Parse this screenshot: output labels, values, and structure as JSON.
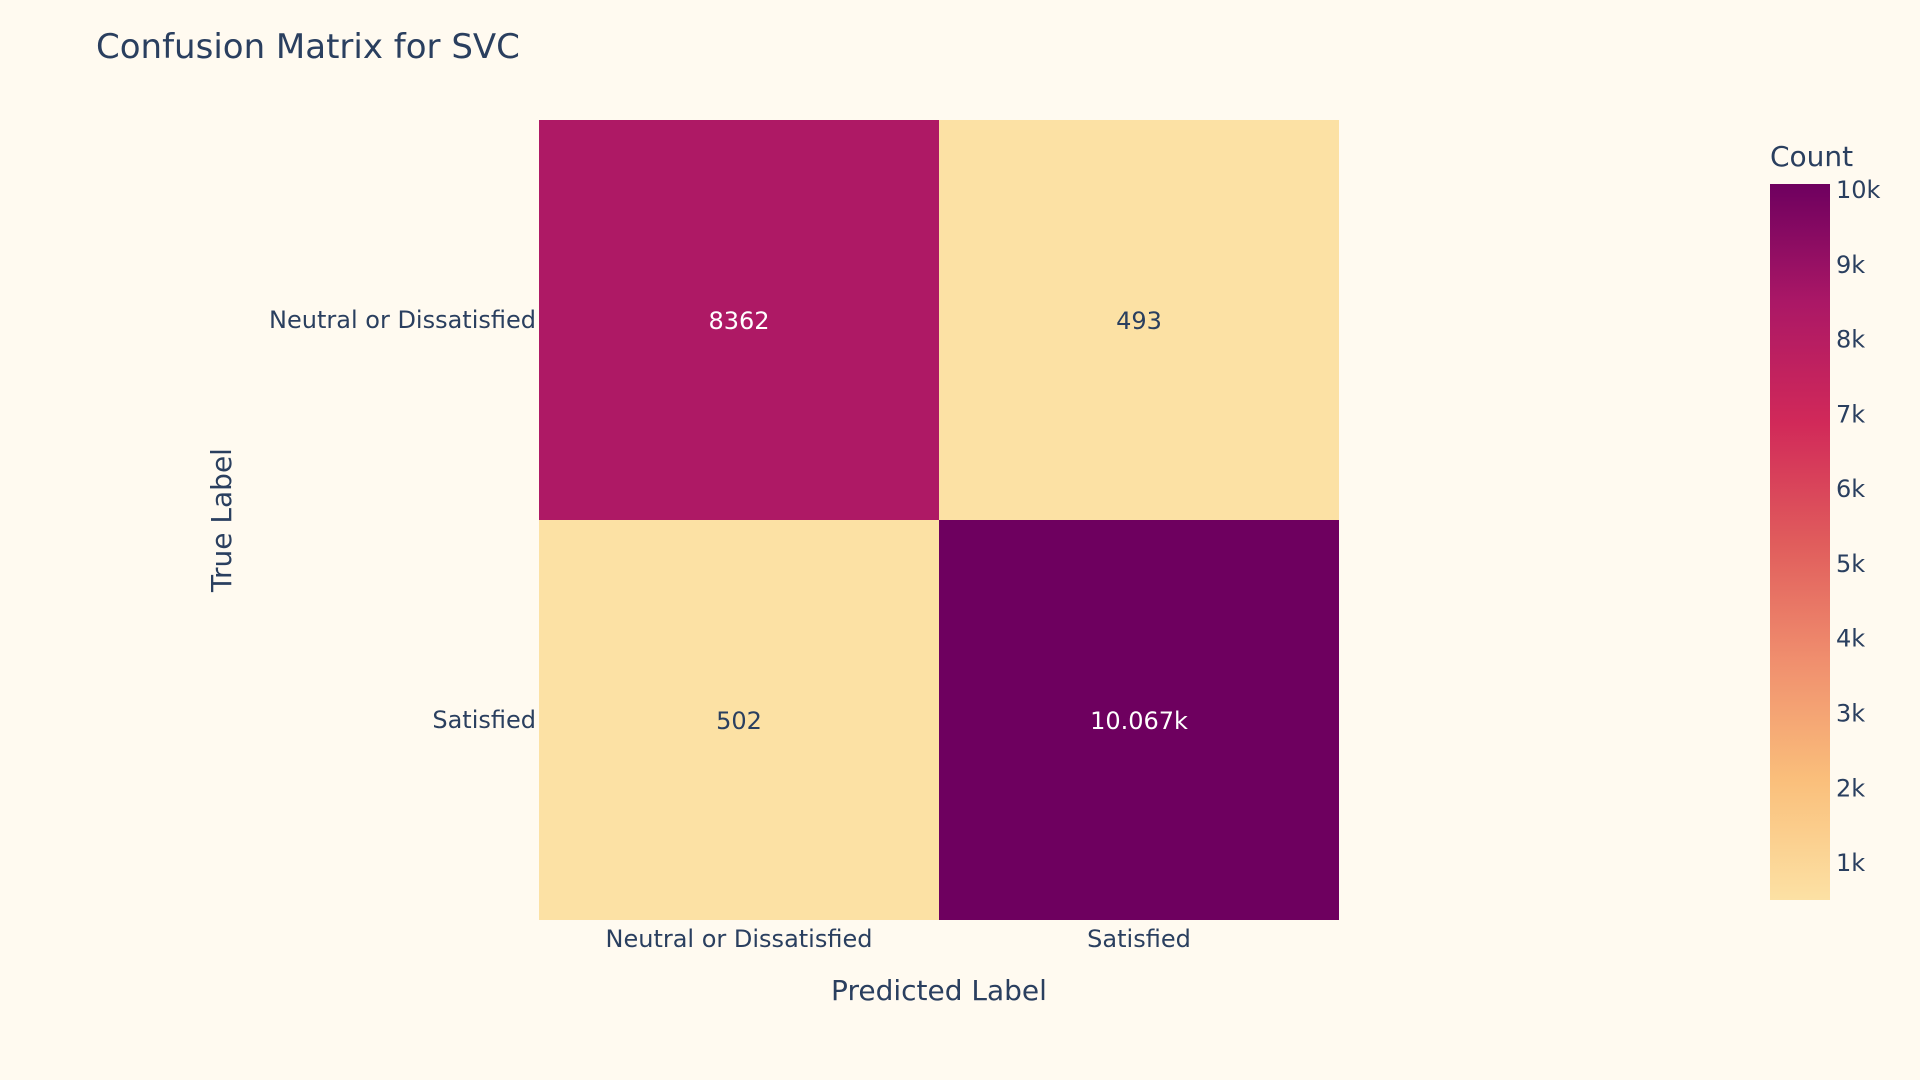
{
  "chart_data": {
    "type": "heatmap",
    "title": "Confusion Matrix for SVC",
    "xlabel": "Predicted Label",
    "ylabel": "True Label",
    "x_categories": [
      "Neutral or Dissatisfied",
      "Satisfied"
    ],
    "y_categories": [
      "Neutral or Dissatisfied",
      "Satisfied"
    ],
    "values": [
      [
        8362,
        493
      ],
      [
        502,
        10067
      ]
    ],
    "cell_labels": [
      [
        "8362",
        "493"
      ],
      [
        "502",
        "10.067k"
      ]
    ],
    "colorbar": {
      "title": "Count",
      "range": [
        493,
        10067
      ],
      "ticks": [
        1000,
        2000,
        3000,
        4000,
        5000,
        6000,
        7000,
        8000,
        9000,
        10000
      ],
      "tick_labels": [
        "1k",
        "2k",
        "3k",
        "4k",
        "5k",
        "6k",
        "7k",
        "8k",
        "9k",
        "10k"
      ],
      "colorscale": [
        "#fce1a4",
        "#fabf7b",
        "#f08f6e",
        "#e05c5c",
        "#d12959",
        "#ab1866",
        "#6e005f"
      ]
    }
  },
  "colors": {
    "background": "#fffaf0",
    "text": "#2a3f5f",
    "light_text": "#2a3f5f",
    "dark_text": "#ffffff"
  }
}
